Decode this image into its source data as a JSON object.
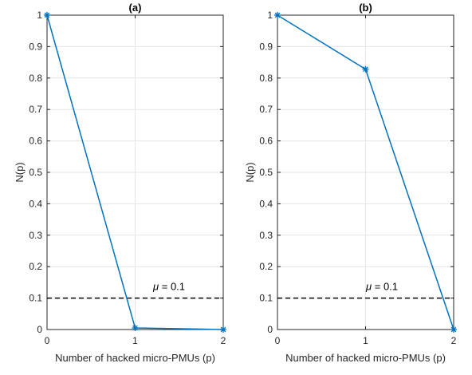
{
  "chart_data": [
    {
      "type": "line",
      "title": "(a)",
      "xlabel": "Number of hacked micro-PMUs (p)",
      "ylabel": "N(p)",
      "xlim": [
        0,
        2
      ],
      "ylim": [
        0,
        1
      ],
      "x": [
        0,
        1,
        2
      ],
      "x_ticks": [
        "0",
        "1",
        "2"
      ],
      "y_ticks": [
        "0",
        "0.1",
        "0.2",
        "0.3",
        "0.4",
        "0.5",
        "0.6",
        "0.7",
        "0.8",
        "0.9",
        "1"
      ],
      "grid": true,
      "series": [
        {
          "values": [
            1.0,
            0.005,
            0.0
          ],
          "color": "#0072BD",
          "marker": "asterisk"
        }
      ],
      "threshold": {
        "value": 0.1,
        "style": "dashed",
        "color": "#000000"
      },
      "annotation": {
        "symbol": "μ",
        "text": " = 0.1"
      }
    },
    {
      "type": "line",
      "title": "(b)",
      "xlabel": "Number of hacked micro-PMUs (p)",
      "ylabel": "N(p)",
      "xlim": [
        0,
        2
      ],
      "ylim": [
        0,
        1
      ],
      "x": [
        0,
        1,
        2
      ],
      "x_ticks": [
        "0",
        "1",
        "2"
      ],
      "y_ticks": [
        "0",
        "0.1",
        "0.2",
        "0.3",
        "0.4",
        "0.5",
        "0.6",
        "0.7",
        "0.8",
        "0.9",
        "1"
      ],
      "grid": true,
      "series": [
        {
          "values": [
            1.0,
            0.828,
            0.0
          ],
          "color": "#0072BD",
          "marker": "asterisk"
        }
      ],
      "threshold": {
        "value": 0.1,
        "style": "dashed",
        "color": "#000000"
      },
      "annotation": {
        "symbol": "μ",
        "text": " = 0.1"
      }
    }
  ]
}
